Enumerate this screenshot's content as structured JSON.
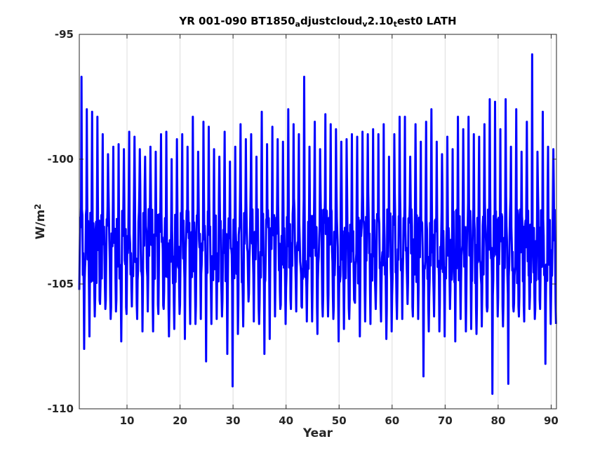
{
  "chart_data": {
    "type": "line",
    "title": {
      "parts": [
        {
          "text": "YR 001-090 BT1850",
          "sub": false
        },
        {
          "text": "a",
          "sub": true
        },
        {
          "text": "djustcloud",
          "sub": false
        },
        {
          "text": "v",
          "sub": true
        },
        {
          "text": "2.10",
          "sub": false
        },
        {
          "text": "t",
          "sub": true
        },
        {
          "text": "est0 LATH",
          "sub": false
        }
      ]
    },
    "xlabel": "Year",
    "ylabel": {
      "base": "W/m",
      "sup": "2"
    },
    "xlim": [
      1,
      91
    ],
    "ylim": [
      -110,
      -95
    ],
    "xticks": [
      10,
      20,
      30,
      40,
      50,
      60,
      70,
      80,
      90
    ],
    "yticks": [
      -110,
      -105,
      -100,
      -95
    ],
    "grid": "x",
    "series": [
      {
        "color": "#0000ff",
        "line_width": 3,
        "samples_per_year": 12,
        "annual_peaks": [
          -96.7,
          -98.0,
          -98.1,
          -98.3,
          -99.0,
          -99.8,
          -99.5,
          -99.4,
          -99.6,
          -98.9,
          -99.1,
          -99.6,
          -99.9,
          -99.5,
          -99.7,
          -99.0,
          -98.9,
          -100.0,
          -99.2,
          -99.0,
          -99.5,
          -98.3,
          -99.7,
          -98.5,
          -98.7,
          -99.6,
          -99.9,
          -98.9,
          -100.1,
          -99.5,
          -98.6,
          -99.2,
          -99.0,
          -99.9,
          -98.1,
          -99.4,
          -98.7,
          -99.2,
          -99.3,
          -98.0,
          -98.6,
          -99.0,
          -96.7,
          -99.5,
          -98.5,
          -99.6,
          -98.2,
          -98.6,
          -98.8,
          -99.3,
          -99.2,
          -99.0,
          -99.1,
          -98.9,
          -99.0,
          -98.8,
          -99.0,
          -98.6,
          -99.9,
          -99.0,
          -98.3,
          -98.3,
          -99.9,
          -98.6,
          -99.3,
          -98.5,
          -98.0,
          -99.3,
          -99.8,
          -99.1,
          -99.6,
          -98.3,
          -98.8,
          -98.3,
          -99.0,
          -99.1,
          -98.6,
          -97.6,
          -97.7,
          -98.8,
          -97.6,
          -99.5,
          -98.0,
          -99.7,
          -98.5,
          -95.8,
          -99.7,
          -98.1,
          -99.5,
          -99.6
        ],
        "annual_troughs": [
          -107.6,
          -107.1,
          -106.3,
          -105.8,
          -106.0,
          -106.4,
          -106.1,
          -107.3,
          -106.2,
          -105.9,
          -106.4,
          -106.9,
          -106.1,
          -106.9,
          -106.2,
          -106.0,
          -107.1,
          -106.8,
          -106.2,
          -107.2,
          -106.6,
          -106.6,
          -106.4,
          -108.1,
          -106.6,
          -106.4,
          -106.3,
          -107.8,
          -109.1,
          -107.0,
          -106.7,
          -105.7,
          -106.5,
          -106.6,
          -107.8,
          -107.2,
          -106.3,
          -106.0,
          -106.6,
          -106.0,
          -106.1,
          -105.9,
          -106.5,
          -106.5,
          -107.0,
          -106.3,
          -106.3,
          -106.4,
          -107.3,
          -106.8,
          -106.4,
          -105.7,
          -107.1,
          -106.5,
          -106.6,
          -106.0,
          -106.5,
          -107.2,
          -106.9,
          -106.4,
          -106.4,
          -105.8,
          -106.3,
          -106.4,
          -108.7,
          -106.9,
          -106.3,
          -106.9,
          -107.1,
          -106.0,
          -107.3,
          -106.4,
          -106.9,
          -106.8,
          -107.0,
          -106.7,
          -106.1,
          -109.4,
          -106.3,
          -106.7,
          -109.0,
          -106.1,
          -106.3,
          -106.5,
          -106.0,
          -106.4,
          -106.0,
          -108.2,
          -106.6,
          -106.6
        ]
      }
    ]
  }
}
